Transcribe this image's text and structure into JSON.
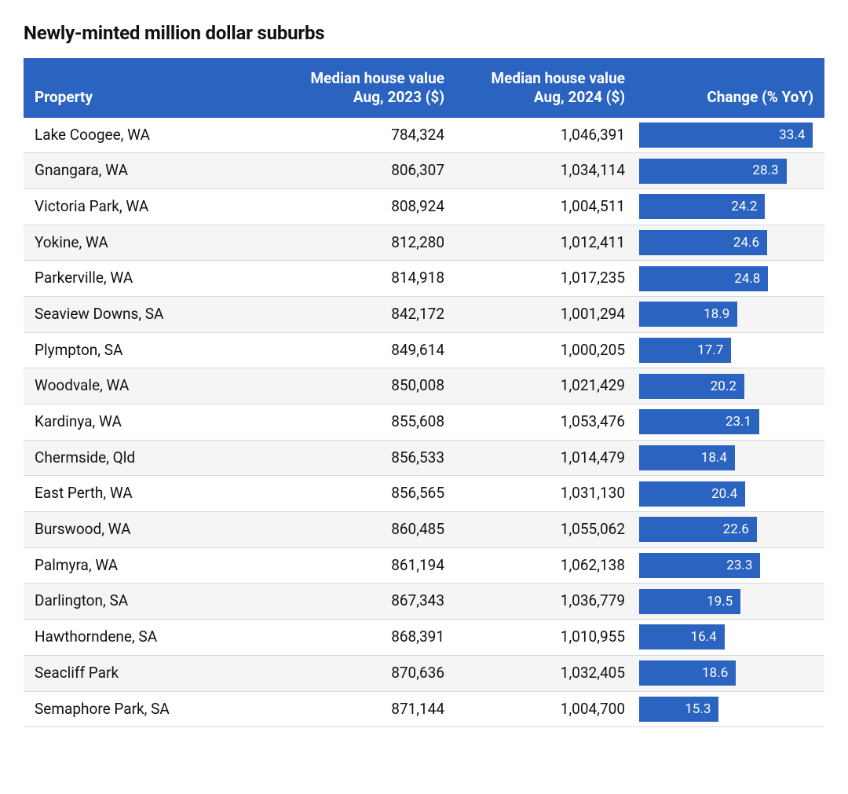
{
  "title": "Newly-minted million dollar suburbs",
  "table": {
    "type": "table-with-bar",
    "header_bg": "#2a63c0",
    "header_text_color": "#ffffff",
    "row_alt_bg": "#f5f5f5",
    "row_bg": "#ffffff",
    "border_color": "#d9d9d9",
    "bar_color": "#2a63c0",
    "bar_text_color": "#ffffff",
    "bar_max_value": 35,
    "columns": [
      {
        "key": "property",
        "label": "Property",
        "align": "left"
      },
      {
        "key": "v2023",
        "label": "Median house value Aug, 2023 ($)",
        "align": "right"
      },
      {
        "key": "v2024",
        "label": "Median house value Aug, 2024 ($)",
        "align": "right"
      },
      {
        "key": "change",
        "label": "Change (% YoY)",
        "align": "right",
        "render": "bar"
      }
    ],
    "rows": [
      {
        "property": "Lake Coogee, WA",
        "v2023": "784,324",
        "v2024": "1,046,391",
        "change": 33.4
      },
      {
        "property": "Gnangara, WA",
        "v2023": "806,307",
        "v2024": "1,034,114",
        "change": 28.3
      },
      {
        "property": "Victoria Park, WA",
        "v2023": "808,924",
        "v2024": "1,004,511",
        "change": 24.2
      },
      {
        "property": "Yokine, WA",
        "v2023": "812,280",
        "v2024": "1,012,411",
        "change": 24.6
      },
      {
        "property": "Parkerville, WA",
        "v2023": "814,918",
        "v2024": "1,017,235",
        "change": 24.8
      },
      {
        "property": "Seaview Downs, SA",
        "v2023": "842,172",
        "v2024": "1,001,294",
        "change": 18.9
      },
      {
        "property": "Plympton, SA",
        "v2023": "849,614",
        "v2024": "1,000,205",
        "change": 17.7
      },
      {
        "property": "Woodvale, WA",
        "v2023": "850,008",
        "v2024": "1,021,429",
        "change": 20.2
      },
      {
        "property": "Kardinya, WA",
        "v2023": "855,608",
        "v2024": "1,053,476",
        "change": 23.1
      },
      {
        "property": "Chermside, Qld",
        "v2023": "856,533",
        "v2024": "1,014,479",
        "change": 18.4
      },
      {
        "property": "East Perth, WA",
        "v2023": "856,565",
        "v2024": "1,031,130",
        "change": 20.4
      },
      {
        "property": "Burswood, WA",
        "v2023": "860,485",
        "v2024": "1,055,062",
        "change": 22.6
      },
      {
        "property": "Palmyra, WA",
        "v2023": "861,194",
        "v2024": "1,062,138",
        "change": 23.3
      },
      {
        "property": "Darlington, SA",
        "v2023": "867,343",
        "v2024": "1,036,779",
        "change": 19.5
      },
      {
        "property": "Hawthorndene, SA",
        "v2023": "868,391",
        "v2024": "1,010,955",
        "change": 16.4
      },
      {
        "property": "Seacliff Park",
        "v2023": "870,636",
        "v2024": "1,032,405",
        "change": 18.6
      },
      {
        "property": "Semaphore Park, SA",
        "v2023": "871,144",
        "v2024": "1,004,700",
        "change": 15.3
      }
    ]
  }
}
